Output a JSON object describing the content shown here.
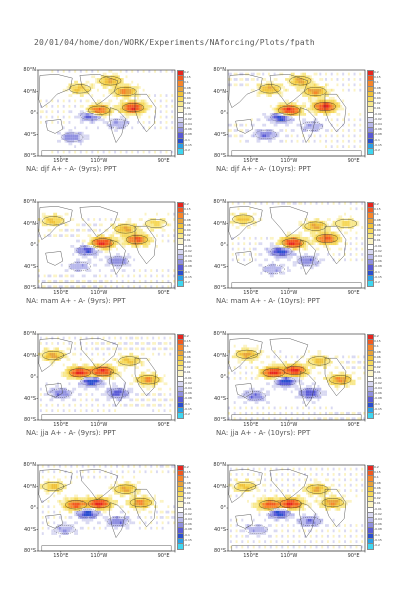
{
  "header": {
    "path": "20/01/04/home/don/WORK/Experiments/NAforcing/Plots/fpath"
  },
  "colorbar": {
    "levels": [
      "0.2",
      "0.15",
      "0.1",
      "0.08",
      "0.06",
      "0.04",
      "0.02",
      "0.01",
      "-0.01",
      "-0.02",
      "-0.04",
      "-0.06",
      "-0.08",
      "-0.1",
      "-0.15",
      "-0.2"
    ],
    "colors": [
      "#e8261f",
      "#f25a20",
      "#f7862a",
      "#e7a33a",
      "#f0c23a",
      "#f6d85a",
      "#f8e88c",
      "#fbf3c3",
      "#ffffff",
      "#d9d9f2",
      "#b8b8ec",
      "#8f8fe0",
      "#5a5ad6",
      "#2a4fd0",
      "#2aa0e8",
      "#3ed6f0"
    ]
  },
  "chart_data": [
    {
      "type": "heatmap",
      "title": "NA: djf A+ - A- (9yrs): PPT",
      "y_tick_labels": [
        "80°N",
        "40°N",
        "0°",
        "40°S",
        "80°S"
      ],
      "x_tick_labels": [
        "150°E",
        "110°W",
        "90°E"
      ],
      "xlim": [
        90,
        450
      ],
      "ylim": [
        -80,
        80
      ],
      "field_centers": [
        [
          250,
          5,
          0.15
        ],
        [
          230,
          -5,
          -0.08
        ],
        [
          320,
          40,
          0.1
        ],
        [
          200,
          45,
          0.06
        ],
        [
          180,
          -45,
          -0.06
        ],
        [
          280,
          60,
          0.08
        ],
        [
          300,
          -20,
          -0.04
        ],
        [
          340,
          10,
          0.2
        ]
      ]
    },
    {
      "type": "heatmap",
      "title": "NA: djf A+ - A- (10yrs): PPT",
      "y_tick_labels": [
        "80°N",
        "40°N",
        "0°",
        "40°S",
        "80°S"
      ],
      "x_tick_labels": [
        "150°E",
        "110°W",
        "90°E"
      ],
      "xlim": [
        90,
        450
      ],
      "ylim": [
        -80,
        80
      ],
      "field_centers": [
        [
          250,
          5,
          0.2
        ],
        [
          230,
          -8,
          -0.1
        ],
        [
          320,
          40,
          0.1
        ],
        [
          200,
          45,
          0.08
        ],
        [
          190,
          -40,
          -0.06
        ],
        [
          280,
          60,
          0.08
        ],
        [
          310,
          -25,
          -0.04
        ],
        [
          345,
          12,
          0.2
        ]
      ]
    },
    {
      "type": "heatmap",
      "title": "NA: mam A+ - A- (9yrs): PPT",
      "y_tick_labels": [
        "80°N",
        "40°N",
        "0°",
        "40°S",
        "80°S"
      ],
      "x_tick_labels": [
        "150°E",
        "110°W",
        "90°E"
      ],
      "xlim": [
        90,
        450
      ],
      "ylim": [
        -80,
        80
      ],
      "field_centers": [
        [
          260,
          4,
          0.2
        ],
        [
          220,
          -10,
          -0.08
        ],
        [
          130,
          45,
          0.06
        ],
        [
          320,
          30,
          0.08
        ],
        [
          200,
          -40,
          -0.04
        ],
        [
          300,
          -30,
          -0.06
        ],
        [
          350,
          10,
          0.15
        ],
        [
          400,
          40,
          0.04
        ]
      ]
    },
    {
      "type": "heatmap",
      "title": "NA: mam A+ - A- (10yrs): PPT",
      "y_tick_labels": [
        "80°N",
        "40°N",
        "0°",
        "40°S",
        "80°S"
      ],
      "x_tick_labels": [
        "150°E",
        "110°W",
        "90°E"
      ],
      "xlim": [
        90,
        450
      ],
      "ylim": [
        -80,
        80
      ],
      "field_centers": [
        [
          260,
          4,
          0.2
        ],
        [
          230,
          -12,
          -0.1
        ],
        [
          130,
          48,
          0.06
        ],
        [
          320,
          35,
          0.08
        ],
        [
          210,
          -45,
          -0.04
        ],
        [
          300,
          -30,
          -0.06
        ],
        [
          350,
          12,
          0.15
        ],
        [
          400,
          40,
          0.04
        ]
      ]
    },
    {
      "type": "heatmap",
      "title": "NA: jja A+ - A- (9yrs): PPT",
      "y_tick_labels": [
        "80°N",
        "40°N",
        "0°",
        "40°S",
        "80°S"
      ],
      "x_tick_labels": [
        "150°E",
        "110°W",
        "90°E"
      ],
      "xlim": [
        90,
        450
      ],
      "ylim": [
        -80,
        80
      ],
      "field_centers": [
        [
          200,
          8,
          0.2
        ],
        [
          260,
          10,
          0.2
        ],
        [
          230,
          -8,
          -0.1
        ],
        [
          130,
          40,
          0.08
        ],
        [
          330,
          30,
          0.06
        ],
        [
          300,
          -30,
          -0.08
        ],
        [
          380,
          -5,
          0.1
        ],
        [
          150,
          -30,
          -0.06
        ]
      ]
    },
    {
      "type": "heatmap",
      "title": "NA: jja A+ - A- (10yrs): PPT",
      "y_tick_labels": [
        "80°N",
        "40°N",
        "0°",
        "40°S",
        "80°S"
      ],
      "x_tick_labels": [
        "150°E",
        "110°W",
        "90°E"
      ],
      "xlim": [
        90,
        450
      ],
      "ylim": [
        -80,
        80
      ],
      "field_centers": [
        [
          210,
          8,
          0.2
        ],
        [
          265,
          12,
          0.2
        ],
        [
          240,
          -8,
          -0.1
        ],
        [
          140,
          42,
          0.08
        ],
        [
          330,
          30,
          0.06
        ],
        [
          305,
          -30,
          -0.08
        ],
        [
          385,
          -5,
          0.1
        ],
        [
          160,
          -35,
          -0.06
        ]
      ]
    },
    {
      "type": "heatmap",
      "title": "",
      "y_tick_labels": [
        "80°N",
        "40°N",
        "0°",
        "40°S",
        "80°S"
      ],
      "x_tick_labels": [
        "150°E",
        "110°W",
        "90°E"
      ],
      "xlim": [
        90,
        450
      ],
      "ylim": [
        -80,
        80
      ],
      "field_centers": [
        [
          190,
          6,
          0.15
        ],
        [
          250,
          8,
          0.2
        ],
        [
          220,
          -10,
          -0.1
        ],
        [
          130,
          40,
          0.06
        ],
        [
          320,
          35,
          0.08
        ],
        [
          300,
          -25,
          -0.06
        ],
        [
          360,
          10,
          0.1
        ],
        [
          160,
          -40,
          -0.04
        ]
      ]
    },
    {
      "type": "heatmap",
      "title": "",
      "y_tick_labels": [
        "80°N",
        "40°N",
        "0°",
        "40°S",
        "80°S"
      ],
      "x_tick_labels": [
        "150°E",
        "110°W",
        "90°E"
      ],
      "xlim": [
        90,
        450
      ],
      "ylim": [
        -80,
        80
      ],
      "field_centers": [
        [
          200,
          6,
          0.15
        ],
        [
          255,
          8,
          0.2
        ],
        [
          225,
          -10,
          -0.1
        ],
        [
          135,
          40,
          0.06
        ],
        [
          325,
          35,
          0.08
        ],
        [
          305,
          -25,
          -0.06
        ],
        [
          365,
          10,
          0.1
        ],
        [
          165,
          -40,
          -0.04
        ]
      ]
    }
  ]
}
